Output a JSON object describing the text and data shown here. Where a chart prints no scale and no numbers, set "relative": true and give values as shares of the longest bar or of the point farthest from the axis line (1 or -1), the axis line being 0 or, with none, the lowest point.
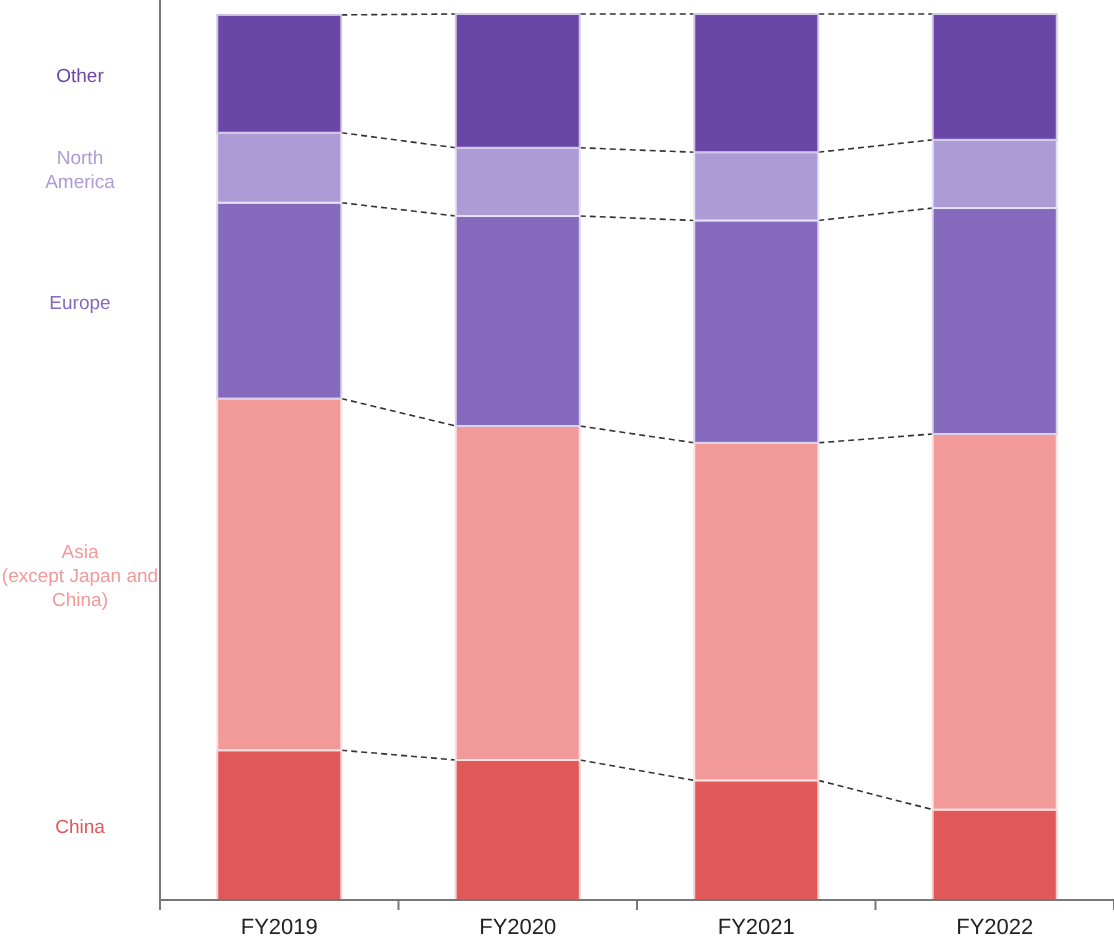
{
  "chart_data": {
    "type": "bar",
    "stacked": true,
    "relative": true,
    "legend": false,
    "categories": [
      "FY2019",
      "FY2020",
      "FY2021",
      "FY2022"
    ],
    "series": [
      {
        "name": "China",
        "color": "#e05858",
        "values": [
          0.169,
          0.158,
          0.135,
          0.102
        ]
      },
      {
        "name": "Asia\n(except Japan and\nChina)",
        "color": "#f29a9a",
        "values": [
          0.397,
          0.377,
          0.381,
          0.424
        ]
      },
      {
        "name": "Europe",
        "color": "#8469bd",
        "values": [
          0.221,
          0.237,
          0.251,
          0.255
        ]
      },
      {
        "name": "North\nAmerica",
        "color": "#ad9bd6",
        "values": [
          0.079,
          0.077,
          0.077,
          0.077
        ]
      },
      {
        "name": "Other",
        "color": "#6a46a6",
        "values": [
          0.133,
          0.151,
          0.156,
          0.142
        ]
      }
    ]
  }
}
